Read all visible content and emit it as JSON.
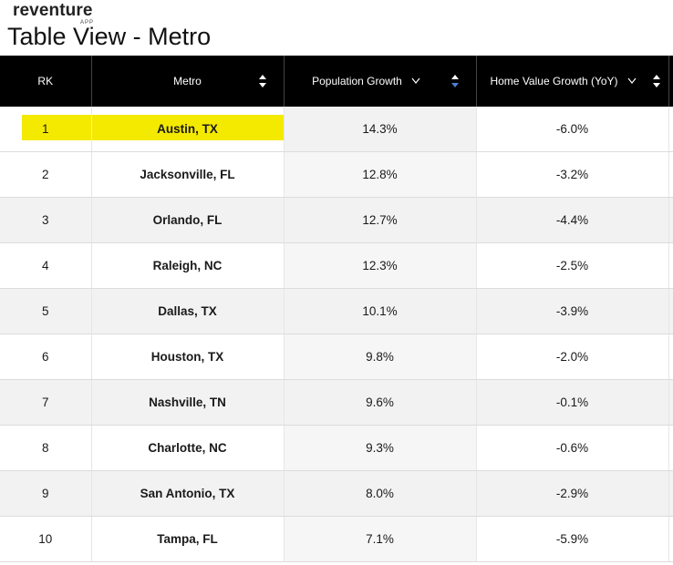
{
  "brand": {
    "name": "reventure",
    "sub": "APP"
  },
  "page": {
    "title": "Table View - Metro"
  },
  "table": {
    "headers": {
      "rk": "RK",
      "metro": "Metro",
      "population_growth": "Population Growth",
      "home_value_growth": "Home Value Growth (YoY)"
    },
    "rows": [
      {
        "rk": "1",
        "metro": "Austin, TX",
        "pop": "14.3%",
        "hv": "-6.0%"
      },
      {
        "rk": "2",
        "metro": "Jacksonville, FL",
        "pop": "12.8%",
        "hv": "-3.2%"
      },
      {
        "rk": "3",
        "metro": "Orlando, FL",
        "pop": "12.7%",
        "hv": "-4.4%"
      },
      {
        "rk": "4",
        "metro": "Raleigh, NC",
        "pop": "12.3%",
        "hv": "-2.5%"
      },
      {
        "rk": "5",
        "metro": "Dallas, TX",
        "pop": "10.1%",
        "hv": "-3.9%"
      },
      {
        "rk": "6",
        "metro": "Houston, TX",
        "pop": "9.8%",
        "hv": "-2.0%"
      },
      {
        "rk": "7",
        "metro": "Nashville, TN",
        "pop": "9.6%",
        "hv": "-0.1%"
      },
      {
        "rk": "8",
        "metro": "Charlotte, NC",
        "pop": "9.3%",
        "hv": "-0.6%"
      },
      {
        "rk": "9",
        "metro": "San Antonio, TX",
        "pop": "8.0%",
        "hv": "-2.9%"
      },
      {
        "rk": "10",
        "metro": "Tampa, FL",
        "pop": "7.1%",
        "hv": "-5.9%"
      }
    ]
  },
  "colors": {
    "header_bg": "#000000",
    "highlight": "#f4ea00",
    "active_sort": "#4a7fd4"
  }
}
